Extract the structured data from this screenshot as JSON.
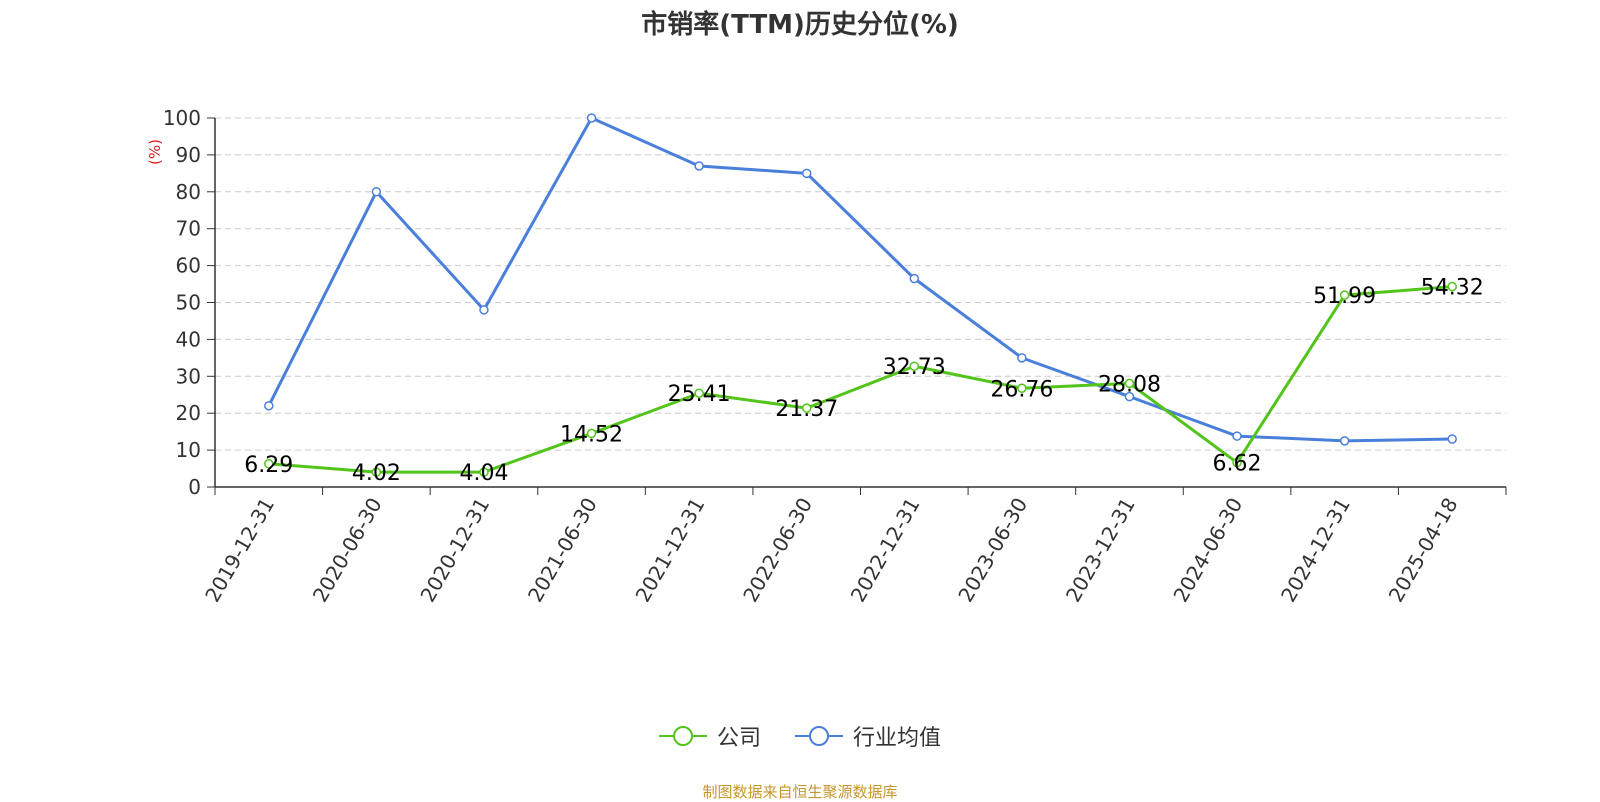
{
  "chart_data": {
    "type": "line",
    "title": "市销率(TTM)历史分位(%)",
    "ylabel": "(%)",
    "xlabel": "",
    "ylim": [
      0,
      100
    ],
    "yticks": [
      0,
      10,
      20,
      30,
      40,
      50,
      60,
      70,
      80,
      90,
      100
    ],
    "categories": [
      "2019-12-31",
      "2020-06-30",
      "2020-12-31",
      "2021-06-30",
      "2021-12-31",
      "2022-06-30",
      "2022-12-31",
      "2023-06-30",
      "2023-12-31",
      "2024-06-30",
      "2024-12-31",
      "2025-04-18"
    ],
    "grid": true,
    "legend_position": "bottom",
    "series": [
      {
        "name": "公司",
        "color": "#52c41a",
        "values": [
          6.29,
          4.02,
          4.04,
          14.52,
          25.41,
          21.37,
          32.73,
          26.76,
          28.08,
          6.62,
          51.99,
          54.32
        ],
        "labels": [
          "6.29",
          "4.02",
          "4.04",
          "14.52",
          "25.41",
          "21.37",
          "32.73",
          "26.76",
          "28.08",
          "6.62",
          "51.99",
          "54.32"
        ]
      },
      {
        "name": "行业均值",
        "color": "#4a7fdc",
        "values": [
          22,
          80,
          48,
          100,
          87,
          85,
          56.5,
          35,
          24.5,
          13.8,
          12.5,
          13
        ]
      }
    ]
  },
  "footer": {
    "source": "制图数据来自恒生聚源数据库"
  }
}
